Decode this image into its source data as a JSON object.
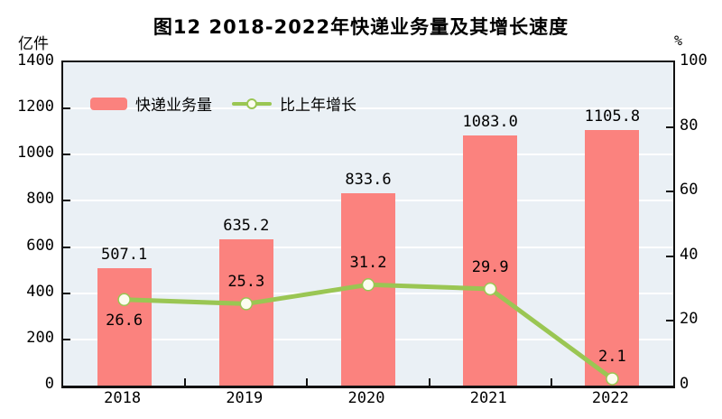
{
  "title": "图12  2018-2022年快递业务量及其增长速度",
  "colors": {
    "bar": "#fb827e",
    "line": "#9ac653",
    "marker_fill": "#fcfcee",
    "plot_bg": "#eaf0f5",
    "grid": "#ffffff",
    "axis": "#111111"
  },
  "legend": [
    {
      "label": "快递业务量",
      "type": "bar"
    },
    {
      "label": "比上年增长",
      "type": "line"
    }
  ],
  "chart_data": {
    "type": "bar+line",
    "categories": [
      "2018",
      "2019",
      "2020",
      "2021",
      "2022"
    ],
    "series": [
      {
        "name": "快递业务量",
        "type": "bar",
        "axis": "left",
        "values": [
          507.1,
          635.2,
          833.6,
          1083.0,
          1105.8
        ],
        "labels": [
          "507.1",
          "635.2",
          "833.6",
          "1083.0",
          "1105.8"
        ]
      },
      {
        "name": "比上年增长",
        "type": "line",
        "axis": "right",
        "values": [
          26.6,
          25.3,
          31.2,
          29.9,
          2.1
        ],
        "labels": [
          "26.6",
          "25.3",
          "31.2",
          "29.9",
          "2.1"
        ],
        "label_positions": [
          "below",
          "above",
          "above",
          "above",
          "above"
        ]
      }
    ],
    "left_axis": {
      "label": "亿件",
      "min": 0,
      "max": 1400,
      "step": 200
    },
    "right_axis": {
      "label": "%",
      "min": 0,
      "max": 100,
      "step": 20
    },
    "grid": true,
    "legend_position": "top-left-inside"
  }
}
